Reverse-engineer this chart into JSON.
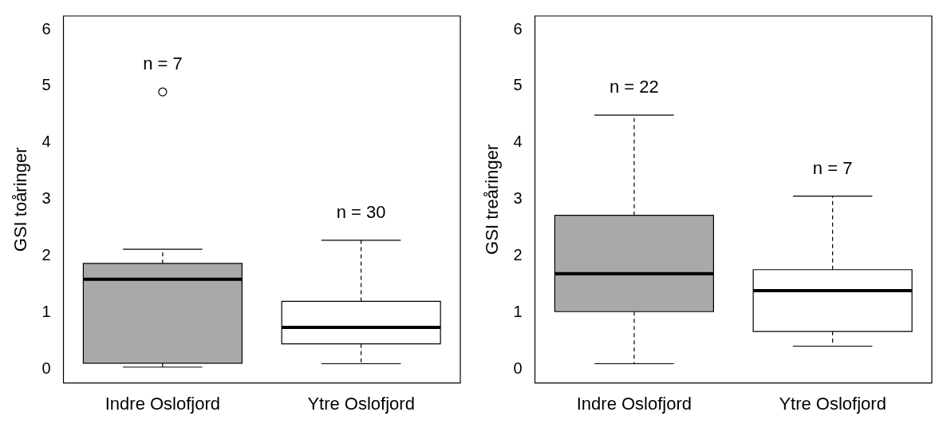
{
  "chart_data": [
    {
      "type": "box",
      "ylabel": "GSI toåringer",
      "categories": [
        "Indre Oslofjord",
        "Ytre Oslofjord"
      ],
      "colors": [
        "#a9a9a9",
        "#ffffff"
      ],
      "boxes": [
        {
          "low": 0.04,
          "q1": 0.11,
          "median": 1.59,
          "q3": 1.87,
          "high": 2.12,
          "outliers": [
            4.9
          ]
        },
        {
          "low": 0.1,
          "q1": 0.45,
          "median": 0.74,
          "q3": 1.2,
          "high": 2.28
        }
      ],
      "ylim": [
        -0.24,
        6.24
      ],
      "yticks": [
        0,
        1,
        2,
        3,
        4,
        5,
        6
      ],
      "grid": false,
      "annotations": [
        "n = 7",
        "n = 30"
      ]
    },
    {
      "type": "box",
      "ylabel": "GSI treåringer",
      "categories": [
        "Indre Oslofjord",
        "Ytre Oslofjord"
      ],
      "colors": [
        "#a9a9a9",
        "#ffffff"
      ],
      "boxes": [
        {
          "low": 0.1,
          "q1": 1.02,
          "median": 1.69,
          "q3": 2.72,
          "high": 4.49
        },
        {
          "low": 0.41,
          "q1": 0.67,
          "median": 1.39,
          "q3": 1.76,
          "high": 3.06
        }
      ],
      "ylim": [
        -0.24,
        6.24
      ],
      "yticks": [
        0,
        1,
        2,
        3,
        4,
        5,
        6
      ],
      "grid": false,
      "annotations": [
        "n = 22",
        "n = 7"
      ]
    }
  ]
}
